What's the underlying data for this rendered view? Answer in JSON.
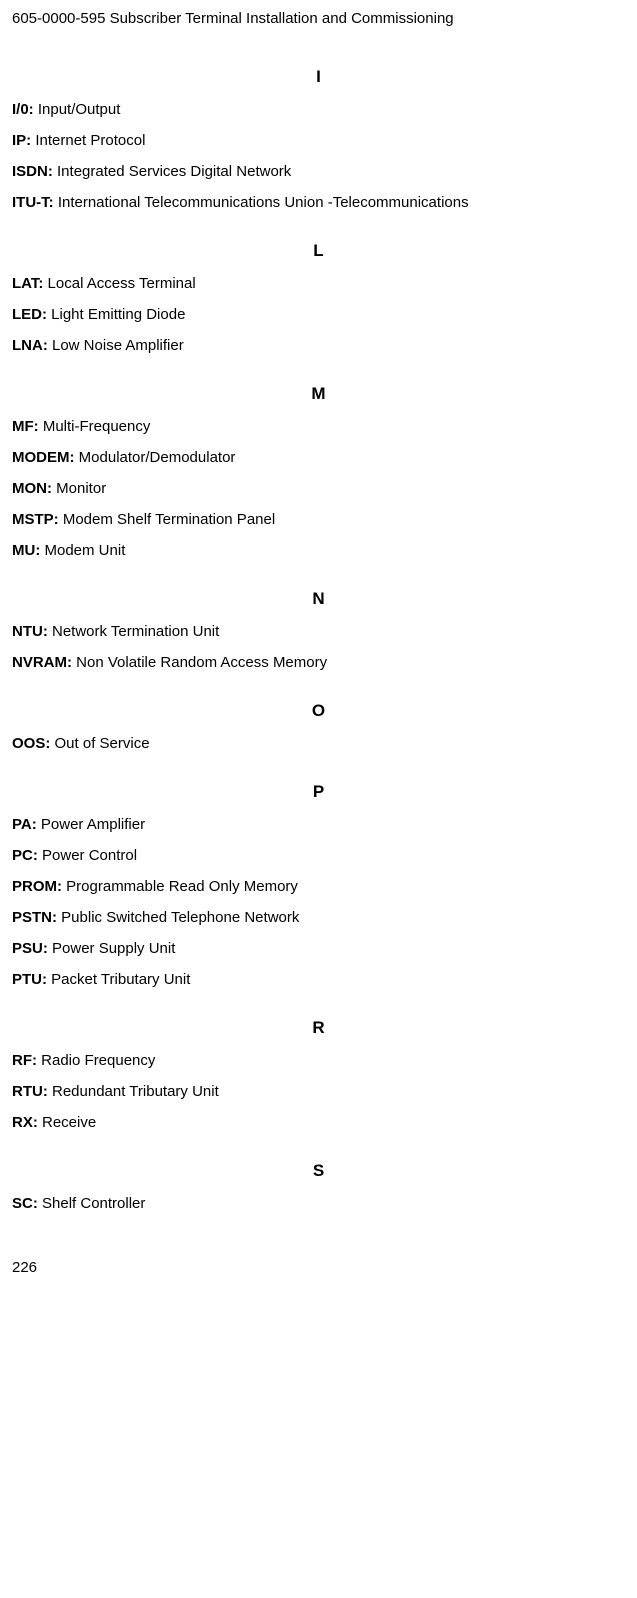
{
  "header": "605-0000-595 Subscriber Terminal Installation and Commissioning",
  "pageNumber": "226",
  "sections": [
    {
      "letter": "I",
      "entries": [
        {
          "term": "I/0:",
          "def": " Input/Output"
        },
        {
          "term": "IP:",
          "def": " Internet Protocol"
        },
        {
          "term": "ISDN:",
          "def": " Integrated Services Digital Network"
        },
        {
          "term": "ITU-T:",
          "def": " International Telecommunications Union -Telecommunications"
        }
      ]
    },
    {
      "letter": "L",
      "entries": [
        {
          "term": "LAT:",
          "def": " Local Access Terminal"
        },
        {
          "term": "LED:",
          "def": " Light Emitting Diode"
        },
        {
          "term": "LNA:",
          "def": " Low Noise Amplifier"
        }
      ]
    },
    {
      "letter": "M",
      "entries": [
        {
          "term": "MF:",
          "def": " Multi-Frequency"
        },
        {
          "term": "MODEM:",
          "def": " Modulator/Demodulator"
        },
        {
          "term": "MON:",
          "def": " Monitor"
        },
        {
          "term": "MSTP:",
          "def": " Modem Shelf Termination Panel"
        },
        {
          "term": "MU:",
          "def": " Modem Unit"
        }
      ]
    },
    {
      "letter": "N",
      "entries": [
        {
          "term": "NTU:",
          "def": " Network Termination Unit"
        },
        {
          "term": "NVRAM:",
          "def": " Non Volatile Random Access Memory"
        }
      ]
    },
    {
      "letter": "O",
      "entries": [
        {
          "term": "OOS:",
          "def": " Out of Service"
        }
      ]
    },
    {
      "letter": "P",
      "entries": [
        {
          "term": "PA:",
          "def": " Power Amplifier"
        },
        {
          "term": "PC:",
          "def": " Power Control"
        },
        {
          "term": "PROM:",
          "def": " Programmable Read Only Memory"
        },
        {
          "term": "PSTN:",
          "def": " Public Switched Telephone Network"
        },
        {
          "term": "PSU:",
          "def": " Power Supply Unit"
        },
        {
          "term": "PTU:",
          "def": " Packet Tributary Unit"
        }
      ]
    },
    {
      "letter": "R",
      "entries": [
        {
          "term": "RF:",
          "def": " Radio Frequency"
        },
        {
          "term": "RTU:",
          "def": " Redundant Tributary Unit"
        },
        {
          "term": "RX:",
          "def": " Receive"
        }
      ]
    },
    {
      "letter": "S",
      "entries": [
        {
          "term": "SC:",
          "def": " Shelf Controller"
        }
      ]
    }
  ]
}
